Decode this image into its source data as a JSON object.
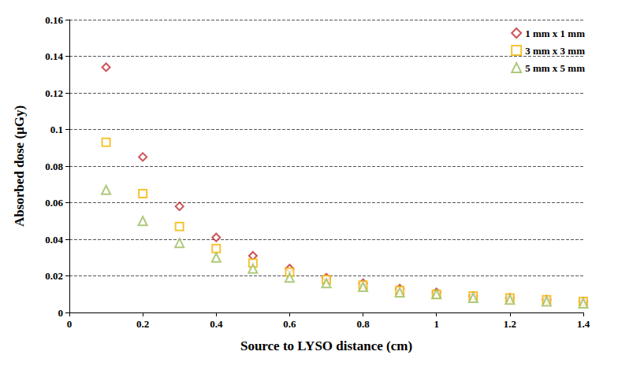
{
  "chart_data": {
    "type": "scatter",
    "x_label": "Source to LYSO distance (cm)",
    "y_label": "Absorbed dose (μGy)",
    "x": [
      0.1,
      0.2,
      0.3,
      0.4,
      0.5,
      0.6,
      0.7,
      0.8,
      0.9,
      1.0,
      1.1,
      1.2,
      1.3,
      1.4
    ],
    "series": [
      {
        "name": "1 mm x 1 mm",
        "color": "#c0282d",
        "marker": "diamond",
        "values": [
          0.134,
          0.085,
          0.058,
          0.041,
          0.031,
          0.024,
          0.019,
          0.016,
          0.013,
          0.011,
          0.009,
          0.008,
          0.007,
          0.006
        ]
      },
      {
        "name": "3 mm x 3 mm",
        "color": "#f5b400",
        "marker": "square",
        "values": [
          0.093,
          0.065,
          0.047,
          0.035,
          0.027,
          0.022,
          0.018,
          0.015,
          0.012,
          0.01,
          0.009,
          0.008,
          0.007,
          0.006
        ]
      },
      {
        "name": "5 mm x 5 mm",
        "color": "#9bbb59",
        "marker": "triangle",
        "values": [
          0.067,
          0.05,
          0.038,
          0.03,
          0.024,
          0.019,
          0.016,
          0.014,
          0.011,
          0.01,
          0.008,
          0.007,
          0.006,
          0.005
        ]
      }
    ],
    "xlim": [
      0,
      1.4
    ],
    "xticks": [
      0,
      0.2,
      0.4,
      0.6,
      0.8,
      1,
      1.2,
      1.4
    ],
    "ylim": [
      0,
      0.16
    ],
    "yticks": [
      0,
      0.02,
      0.04,
      0.06,
      0.08,
      0.1,
      0.12,
      0.14,
      0.16
    ],
    "grid": true,
    "legend": "top-right"
  }
}
